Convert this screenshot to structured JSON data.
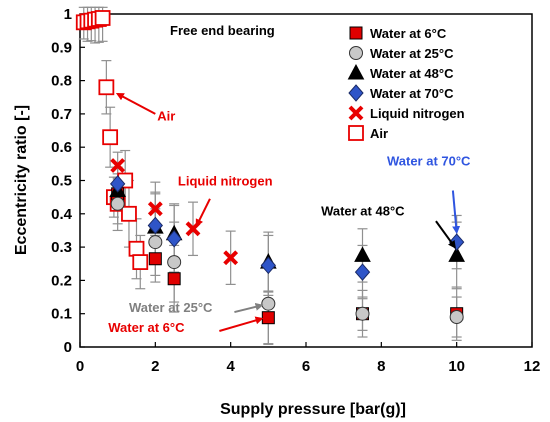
{
  "colors": {
    "water6": "#e00000",
    "water25": "#c8c8c8",
    "water48": "#000000",
    "water70": "#2f55c8",
    "ln2": "#e80000",
    "air": "#e80000",
    "error_bar": "#909090",
    "anno_red": "#e80000",
    "anno_grey": "#808080",
    "anno_black": "#000000",
    "anno_blue": "#2f55e0"
  },
  "chart_data": {
    "type": "scatter",
    "inset_label": "Free end bearing",
    "xlabel": "Supply pressure [bar(g)]",
    "ylabel": "Eccentricity ratio [-]",
    "xlim": [
      0,
      12
    ],
    "ylim": [
      0,
      1
    ],
    "xticks": [
      "0",
      "2",
      "4",
      "6",
      "8",
      "10",
      "12"
    ],
    "yticks": [
      "0",
      "0.1",
      "0.2",
      "0.3",
      "0.4",
      "0.5",
      "0.6",
      "0.7",
      "0.8",
      "0.9",
      "1"
    ],
    "grid": false,
    "legend_position": "top-right",
    "series": [
      {
        "name": "Water at 6°C",
        "marker": "square-filled",
        "color_key": "water6",
        "points": [
          {
            "x": 1.0,
            "y": 0.46,
            "err": 0.05
          },
          {
            "x": 2.0,
            "y": 0.265,
            "err": 0.07
          },
          {
            "x": 2.5,
            "y": 0.205,
            "err": 0.1
          },
          {
            "x": 5.0,
            "y": 0.088,
            "err": 0.08
          },
          {
            "x": 7.5,
            "y": 0.1,
            "err": 0.07
          },
          {
            "x": 10.0,
            "y": 0.1,
            "err": 0.08
          }
        ]
      },
      {
        "name": "Water at 25°C",
        "marker": "circle",
        "color_key": "water25",
        "points": [
          {
            "x": 1.0,
            "y": 0.43,
            "err": 0.08
          },
          {
            "x": 2.0,
            "y": 0.315,
            "err": 0.1
          },
          {
            "x": 2.5,
            "y": 0.255,
            "err": 0.12
          },
          {
            "x": 5.0,
            "y": 0.13,
            "err": 0.12
          },
          {
            "x": 7.5,
            "y": 0.1,
            "err": 0.05
          },
          {
            "x": 10.0,
            "y": 0.09,
            "err": 0.06
          }
        ]
      },
      {
        "name": "Water at 48°C",
        "marker": "triangle",
        "color_key": "water48",
        "points": [
          {
            "x": 1.0,
            "y": 0.47,
            "err": 0.05
          },
          {
            "x": 2.0,
            "y": 0.36,
            "err": 0.1
          },
          {
            "x": 2.5,
            "y": 0.34,
            "err": 0.09
          },
          {
            "x": 5.0,
            "y": 0.255,
            "err": 0.09
          },
          {
            "x": 7.5,
            "y": 0.275,
            "err": 0.08
          },
          {
            "x": 10.0,
            "y": 0.275,
            "err": 0.1
          }
        ]
      },
      {
        "name": "Water at 70°C",
        "marker": "diamond",
        "color_key": "water70",
        "points": [
          {
            "x": 1.0,
            "y": 0.49,
            "err": 0.05
          },
          {
            "x": 2.0,
            "y": 0.365,
            "err": 0.1
          },
          {
            "x": 2.5,
            "y": 0.325,
            "err": 0.1
          },
          {
            "x": 5.0,
            "y": 0.245,
            "err": 0.09
          },
          {
            "x": 7.5,
            "y": 0.225,
            "err": 0.08
          },
          {
            "x": 10.0,
            "y": 0.315,
            "err": 0.08
          }
        ]
      },
      {
        "name": "Liquid nitrogen",
        "marker": "x",
        "color_key": "ln2",
        "points": [
          {
            "x": 1.0,
            "y": 0.545,
            "err": 0.04
          },
          {
            "x": 2.0,
            "y": 0.415,
            "err": 0.08
          },
          {
            "x": 3.0,
            "y": 0.355,
            "err": 0.08
          },
          {
            "x": 4.0,
            "y": 0.268,
            "err": 0.08
          }
        ]
      },
      {
        "name": "Air",
        "marker": "square-open",
        "color_key": "air",
        "points": [
          {
            "x": 0.1,
            "y": 0.975,
            "err": 0.05
          },
          {
            "x": 0.2,
            "y": 0.978,
            "err": 0.06
          },
          {
            "x": 0.3,
            "y": 0.98,
            "err": 0.06
          },
          {
            "x": 0.4,
            "y": 0.983,
            "err": 0.07
          },
          {
            "x": 0.5,
            "y": 0.985,
            "err": 0.07
          },
          {
            "x": 0.6,
            "y": 0.988,
            "err": 0.07
          },
          {
            "x": 0.7,
            "y": 0.78,
            "err": 0.08
          },
          {
            "x": 0.8,
            "y": 0.63,
            "err": 0.09
          },
          {
            "x": 0.9,
            "y": 0.45,
            "err": 0.06
          },
          {
            "x": 1.0,
            "y": 0.43,
            "err": 0.06
          },
          {
            "x": 1.2,
            "y": 0.5,
            "err": 0.09
          },
          {
            "x": 1.3,
            "y": 0.4,
            "err": 0.1
          },
          {
            "x": 1.5,
            "y": 0.295,
            "err": 0.09
          },
          {
            "x": 1.6,
            "y": 0.255,
            "err": 0.08
          }
        ]
      }
    ],
    "annotations": [
      {
        "text": "Air",
        "color_key": "anno_red",
        "text_at": [
          2.05,
          0.68
        ],
        "arrow_from": [
          2.0,
          0.7
        ],
        "arrow_to": [
          1.0,
          0.76
        ]
      },
      {
        "text": "Liquid nitrogen",
        "color_key": "anno_red",
        "text_at": [
          2.6,
          0.485
        ],
        "arrow_from": [
          3.45,
          0.445
        ],
        "arrow_to": [
          3.1,
          0.365
        ]
      },
      {
        "text": "Water at 25°C",
        "color_key": "anno_grey",
        "text_at": [
          1.3,
          0.105
        ],
        "arrow_from": [
          4.1,
          0.105
        ],
        "arrow_to": [
          4.82,
          0.125
        ]
      },
      {
        "text": "Water at 6°C",
        "color_key": "anno_red",
        "text_at": [
          0.75,
          0.045
        ],
        "arrow_from": [
          3.7,
          0.048
        ],
        "arrow_to": [
          4.82,
          0.085
        ]
      },
      {
        "text": "Water at 48°C",
        "color_key": "anno_black",
        "text_at": [
          6.4,
          0.395
        ],
        "arrow_from": [
          9.45,
          0.378
        ],
        "arrow_to": [
          9.95,
          0.3
        ]
      },
      {
        "text": "Water at 70°C",
        "color_key": "anno_blue",
        "text_at": [
          8.15,
          0.545
        ],
        "arrow_from": [
          9.9,
          0.47
        ],
        "arrow_to": [
          10.0,
          0.345
        ]
      }
    ]
  }
}
